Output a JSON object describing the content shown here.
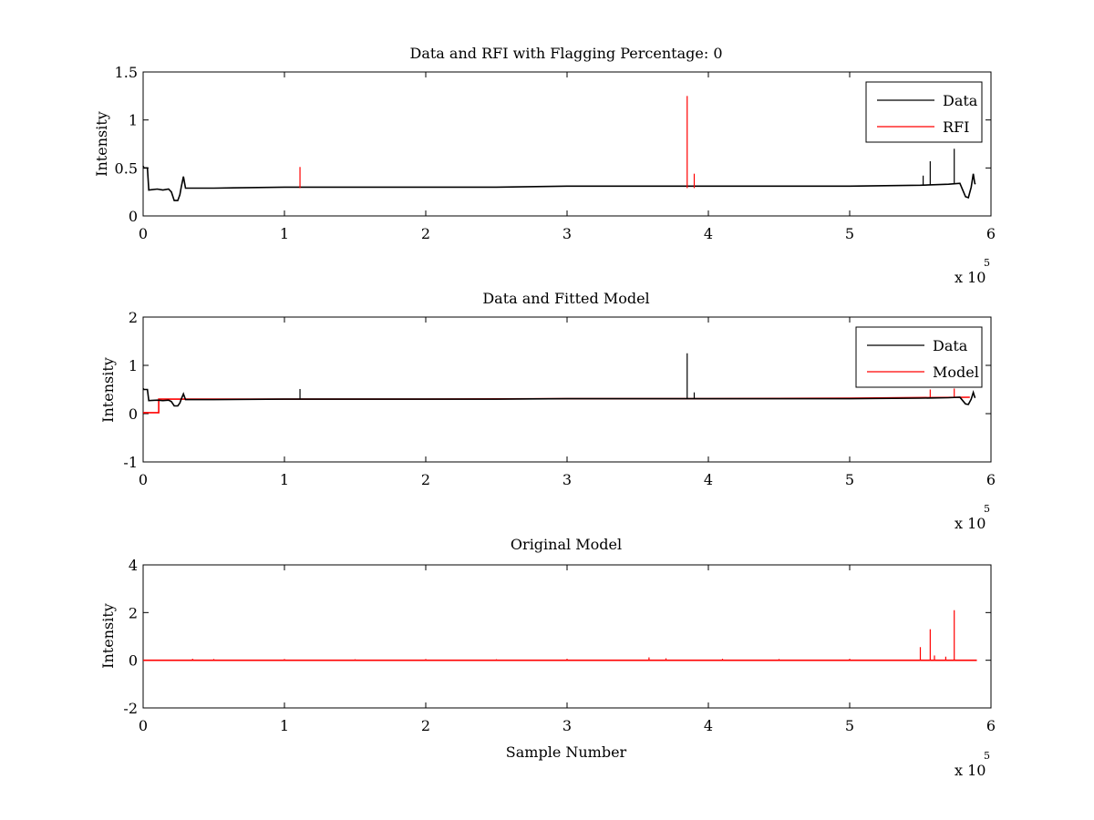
{
  "chart_data": [
    {
      "type": "line",
      "title": "Data and RFI with Flagging Percentage: 0",
      "xlabel": "",
      "ylabel": "Intensity",
      "xlim": [
        0,
        6
      ],
      "ylim": [
        0,
        1.5
      ],
      "x_exponent_label": "x 10",
      "x_exponent_power": "5",
      "xticks": [
        "0",
        "1",
        "2",
        "3",
        "4",
        "5",
        "6"
      ],
      "yticks": [
        {
          "v": 0,
          "label": "0"
        },
        {
          "v": 0.5,
          "label": "0.5"
        },
        {
          "v": 1,
          "label": "1"
        },
        {
          "v": 1.5,
          "label": "1.5"
        }
      ],
      "legend": {
        "position": "top-right",
        "entries": [
          {
            "name": "Data",
            "color": "#000000"
          },
          {
            "name": "RFI",
            "color": "#ff0000"
          }
        ]
      },
      "series": [
        {
          "name": "Data",
          "color": "#000000",
          "points": [
            [
              0,
              0.52
            ],
            [
              0.005,
              0.5
            ],
            [
              0.03,
              0.5
            ],
            [
              0.04,
              0.27
            ],
            [
              0.1,
              0.28
            ],
            [
              0.14,
              0.27
            ],
            [
              0.18,
              0.28
            ],
            [
              0.2,
              0.25
            ],
            [
              0.22,
              0.16
            ],
            [
              0.245,
              0.16
            ],
            [
              0.26,
              0.22
            ],
            [
              0.27,
              0.3
            ],
            [
              0.285,
              0.41
            ],
            [
              0.3,
              0.29
            ],
            [
              0.5,
              0.29
            ],
            [
              1,
              0.3
            ],
            [
              1.5,
              0.3
            ],
            [
              2,
              0.3
            ],
            [
              2.5,
              0.3
            ],
            [
              3,
              0.31
            ],
            [
              3.5,
              0.31
            ],
            [
              4,
              0.31
            ],
            [
              4.5,
              0.31
            ],
            [
              5,
              0.31
            ],
            [
              5.5,
              0.32
            ],
            [
              5.7,
              0.33
            ],
            [
              5.78,
              0.34
            ],
            [
              5.8,
              0.27
            ],
            [
              5.82,
              0.2
            ],
            [
              5.84,
              0.19
            ],
            [
              5.86,
              0.3
            ],
            [
              5.875,
              0.44
            ],
            [
              5.885,
              0.34
            ],
            [
              5.89,
              0.33
            ]
          ],
          "spikes": [
            [
              5.52,
              0.42
            ],
            [
              5.57,
              0.57
            ],
            [
              5.74,
              0.7
            ]
          ]
        },
        {
          "name": "RFI",
          "color": "#ff0000",
          "spikes": [
            [
              1.11,
              0.51
            ],
            [
              3.85,
              1.25
            ],
            [
              3.9,
              0.44
            ]
          ]
        }
      ]
    },
    {
      "type": "line",
      "title": "Data and Fitted Model",
      "xlabel": "",
      "ylabel": "Intensity",
      "xlim": [
        0,
        6
      ],
      "ylim": [
        -1,
        2
      ],
      "x_exponent_label": "x 10",
      "x_exponent_power": "5",
      "xticks": [
        "0",
        "1",
        "2",
        "3",
        "4",
        "5",
        "6"
      ],
      "yticks": [
        {
          "v": -1,
          "label": "-1"
        },
        {
          "v": 0,
          "label": "0"
        },
        {
          "v": 1,
          "label": "1"
        },
        {
          "v": 2,
          "label": "2"
        }
      ],
      "legend": {
        "position": "top-right",
        "entries": [
          {
            "name": "Data",
            "color": "#000000"
          },
          {
            "name": "Model",
            "color": "#ff0000"
          }
        ]
      },
      "series": [
        {
          "name": "Model",
          "color": "#ff0000",
          "points": [
            [
              0,
              0.02
            ],
            [
              0.11,
              0.02
            ],
            [
              0.11,
              0.3
            ],
            [
              1,
              0.3
            ],
            [
              2,
              0.3
            ],
            [
              3,
              0.31
            ],
            [
              4,
              0.31
            ],
            [
              5,
              0.32
            ],
            [
              5.85,
              0.34
            ]
          ],
          "spikes": [
            [
              5.57,
              0.5
            ],
            [
              5.74,
              0.52
            ]
          ]
        },
        {
          "name": "Data",
          "color": "#000000",
          "points": [
            [
              0,
              0.52
            ],
            [
              0.005,
              0.5
            ],
            [
              0.03,
              0.5
            ],
            [
              0.04,
              0.27
            ],
            [
              0.1,
              0.28
            ],
            [
              0.14,
              0.27
            ],
            [
              0.18,
              0.28
            ],
            [
              0.2,
              0.25
            ],
            [
              0.22,
              0.16
            ],
            [
              0.245,
              0.16
            ],
            [
              0.26,
              0.22
            ],
            [
              0.27,
              0.3
            ],
            [
              0.285,
              0.41
            ],
            [
              0.3,
              0.29
            ],
            [
              0.5,
              0.29
            ],
            [
              1,
              0.3
            ],
            [
              1.5,
              0.3
            ],
            [
              2,
              0.3
            ],
            [
              2.5,
              0.3
            ],
            [
              3,
              0.31
            ],
            [
              3.5,
              0.31
            ],
            [
              4,
              0.31
            ],
            [
              4.5,
              0.31
            ],
            [
              5,
              0.31
            ],
            [
              5.5,
              0.32
            ],
            [
              5.7,
              0.33
            ],
            [
              5.78,
              0.34
            ],
            [
              5.8,
              0.27
            ],
            [
              5.82,
              0.2
            ],
            [
              5.84,
              0.19
            ],
            [
              5.86,
              0.3
            ],
            [
              5.875,
              0.44
            ],
            [
              5.885,
              0.34
            ],
            [
              5.89,
              0.33
            ]
          ],
          "spikes": [
            [
              1.11,
              0.51
            ],
            [
              3.85,
              1.25
            ],
            [
              3.9,
              0.44
            ]
          ]
        }
      ]
    },
    {
      "type": "line",
      "title": "Original Model",
      "xlabel": "Sample Number",
      "ylabel": "Intensity",
      "xlim": [
        0,
        6
      ],
      "ylim": [
        -2,
        4
      ],
      "x_exponent_label": "x 10",
      "x_exponent_power": "5",
      "xticks": [
        "0",
        "1",
        "2",
        "3",
        "4",
        "5",
        "6"
      ],
      "yticks": [
        {
          "v": -2,
          "label": "-2"
        },
        {
          "v": 0,
          "label": "0"
        },
        {
          "v": 2,
          "label": "2"
        },
        {
          "v": 4,
          "label": "4"
        }
      ],
      "legend": null,
      "series": [
        {
          "color": "#ff0000",
          "points": [
            [
              0,
              0
            ],
            [
              5.9,
              0
            ]
          ],
          "spikes": [
            [
              0.35,
              0.06
            ],
            [
              0.5,
              0.05
            ],
            [
              1.0,
              0.05
            ],
            [
              1.5,
              0.04
            ],
            [
              2.0,
              0.05
            ],
            [
              2.5,
              0.04
            ],
            [
              3.0,
              0.06
            ],
            [
              3.58,
              0.12
            ],
            [
              3.7,
              0.08
            ],
            [
              4.1,
              0.06
            ],
            [
              4.5,
              0.05
            ],
            [
              5.0,
              0.06
            ],
            [
              5.5,
              0.55
            ],
            [
              5.57,
              1.3
            ],
            [
              5.6,
              0.2
            ],
            [
              5.68,
              0.15
            ],
            [
              5.74,
              2.1
            ]
          ]
        }
      ]
    }
  ]
}
